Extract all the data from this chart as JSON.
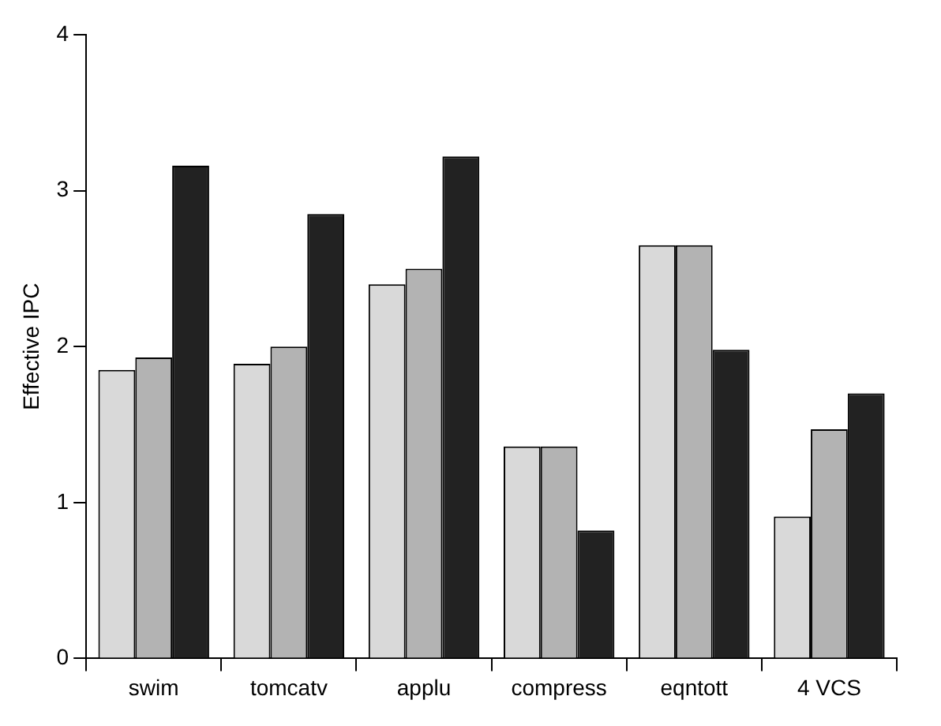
{
  "chart_data": {
    "type": "bar",
    "ylabel": "Effective IPC",
    "categories": [
      "swim",
      "tomcatv",
      "applu",
      "compress",
      "eqntott",
      "4 VCS"
    ],
    "series": [
      {
        "color": "#d9d9d9",
        "values": [
          1.85,
          1.89,
          2.4,
          1.36,
          2.65,
          0.91
        ]
      },
      {
        "color": "#b3b3b3",
        "values": [
          1.93,
          2.0,
          2.5,
          1.36,
          2.65,
          1.47
        ]
      },
      {
        "color": "#222222",
        "values": [
          3.16,
          2.85,
          3.22,
          0.82,
          1.98,
          1.7
        ]
      }
    ],
    "ylim": [
      0,
      4
    ],
    "yticks": [
      0,
      1,
      2,
      3,
      4
    ],
    "grid": false,
    "legend": false
  }
}
